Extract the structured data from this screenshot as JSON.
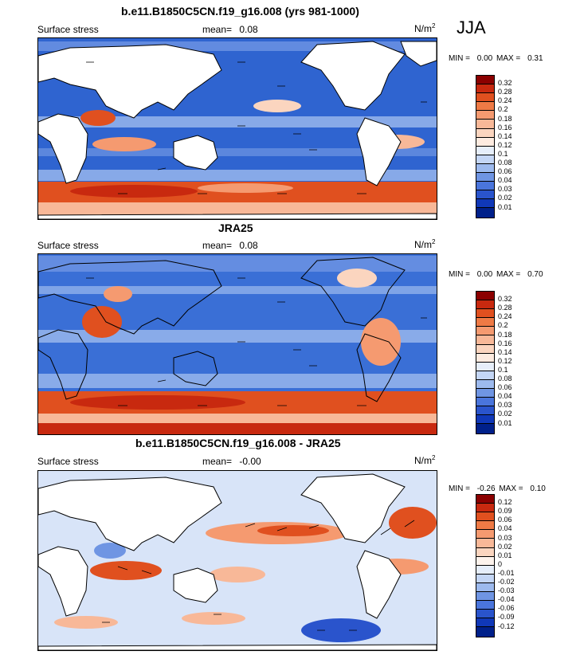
{
  "season": "JJA",
  "panels": [
    {
      "title": "b.e11.B1850C5CN.f19_g16.008 (yrs 981-1000)",
      "field_label": "Surface stress",
      "mean_label": "mean=",
      "mean_value": "0.08",
      "units_base": "N/m",
      "units_exp": "2",
      "min_label": "MIN =",
      "min_value": "0.00",
      "max_label": "MAX =",
      "max_value": "0.31",
      "colorbar": {
        "labels": [
          "0.32",
          "0.28",
          "0.24",
          "0.2",
          "0.18",
          "0.16",
          "0.14",
          "0.12",
          "0.1",
          "0.08",
          "0.06",
          "0.04",
          "0.03",
          "0.02",
          "0.01"
        ],
        "colors": [
          "#8b0000",
          "#c8290f",
          "#e0501f",
          "#ef7a45",
          "#f59a70",
          "#f8b898",
          "#fbd5bf",
          "#fdebe0",
          "#e6eefa",
          "#c4d6f5",
          "#9dbaee",
          "#6f95e3",
          "#4a75dc",
          "#2a54cc",
          "#1038b8",
          "#00208a"
        ]
      },
      "background": "#2f64d0"
    },
    {
      "title": "JRA25",
      "field_label": "Surface stress",
      "mean_label": "mean=",
      "mean_value": "0.08",
      "units_base": "N/m",
      "units_exp": "2",
      "min_label": "MIN =",
      "min_value": "0.00",
      "max_label": "MAX =",
      "max_value": "0.70",
      "colorbar": {
        "labels": [
          "0.32",
          "0.28",
          "0.24",
          "0.2",
          "0.18",
          "0.16",
          "0.14",
          "0.12",
          "0.1",
          "0.08",
          "0.06",
          "0.04",
          "0.03",
          "0.02",
          "0.01"
        ],
        "colors": [
          "#8b0000",
          "#c8290f",
          "#e0501f",
          "#ef7a45",
          "#f59a70",
          "#f8b898",
          "#fbd5bf",
          "#fdebe0",
          "#e6eefa",
          "#c4d6f5",
          "#9dbaee",
          "#6f95e3",
          "#4a75dc",
          "#2a54cc",
          "#1038b8",
          "#00208a"
        ]
      },
      "background": "#3a6fd6"
    },
    {
      "title": "b.e11.B1850C5CN.f19_g16.008 - JRA25",
      "field_label": "Surface stress",
      "mean_label": "mean=",
      "mean_value": "-0.00",
      "units_base": "N/m",
      "units_exp": "2",
      "min_label": "MIN =",
      "min_value": "-0.26",
      "max_label": "MAX =",
      "max_value": "0.10",
      "colorbar": {
        "labels": [
          "0.12",
          "0.09",
          "0.06",
          "0.04",
          "0.03",
          "0.02",
          "0.01",
          "0",
          "-0.01",
          "-0.02",
          "-0.03",
          "-0.04",
          "-0.06",
          "-0.09",
          "-0.12"
        ],
        "colors": [
          "#8b0000",
          "#c8290f",
          "#e0501f",
          "#ef7a45",
          "#f59a70",
          "#f8b898",
          "#fbd5bf",
          "#fdf3ec",
          "#e6eefa",
          "#c4d6f5",
          "#9dbaee",
          "#6f95e3",
          "#4a75dc",
          "#2a54cc",
          "#1038b8",
          "#00208a"
        ]
      },
      "background": "#d8e4f8"
    }
  ]
}
